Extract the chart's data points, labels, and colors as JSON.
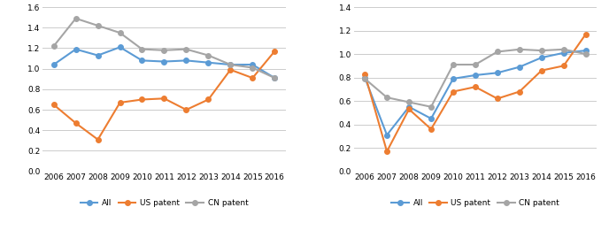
{
  "years": [
    2006,
    2007,
    2008,
    2009,
    2010,
    2011,
    2012,
    2013,
    2014,
    2015,
    2016
  ],
  "left": {
    "all": [
      1.04,
      1.19,
      1.13,
      1.21,
      1.08,
      1.07,
      1.08,
      1.06,
      1.04,
      1.04,
      0.91
    ],
    "us": [
      0.65,
      0.47,
      0.31,
      0.67,
      0.7,
      0.71,
      0.6,
      0.7,
      0.99,
      0.91,
      1.17
    ],
    "cn": [
      1.22,
      1.49,
      1.42,
      1.35,
      1.19,
      1.18,
      1.19,
      1.13,
      1.04,
      1.01,
      0.91
    ],
    "ylim": [
      0.0,
      1.6
    ],
    "yticks": [
      0.0,
      0.2,
      0.4,
      0.6,
      0.8,
      1.0,
      1.2,
      1.4,
      1.6
    ]
  },
  "right": {
    "all": [
      0.8,
      0.31,
      0.55,
      0.45,
      0.79,
      0.82,
      0.84,
      0.89,
      0.97,
      1.01,
      1.03
    ],
    "us": [
      0.83,
      0.17,
      0.53,
      0.36,
      0.68,
      0.72,
      0.62,
      0.68,
      0.86,
      0.9,
      1.17
    ],
    "cn": [
      0.79,
      0.63,
      0.59,
      0.55,
      0.91,
      0.91,
      1.02,
      1.04,
      1.03,
      1.04,
      1.0
    ],
    "ylim": [
      0.0,
      1.4
    ],
    "yticks": [
      0.0,
      0.2,
      0.4,
      0.6,
      0.8,
      1.0,
      1.2,
      1.4
    ]
  },
  "color_all": "#5B9BD5",
  "color_us": "#ED7D31",
  "color_cn": "#A5A5A5",
  "legend_labels": [
    "All",
    "US patent",
    "CN patent"
  ],
  "marker": "o",
  "linewidth": 1.5,
  "markersize": 4
}
